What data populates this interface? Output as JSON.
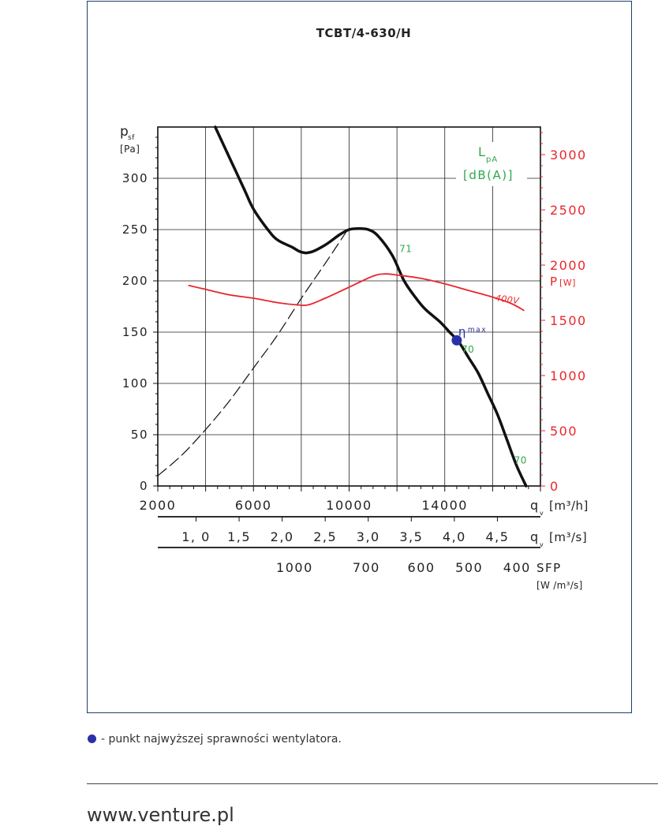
{
  "chart_data": {
    "type": "line",
    "title": "TCBT/4-630/H",
    "ylabel_main": "p",
    "ylabel_sub": "sf",
    "yunit": "[Pa]",
    "y_ticks": [
      "0",
      "50",
      "100",
      "150",
      "200",
      "250",
      "300"
    ],
    "ylim": [
      0,
      350
    ],
    "right_axis": {
      "label_main": "P",
      "label_unit": "[W]",
      "color": "#e8262c",
      "ticks": [
        "0",
        "500",
        "1000",
        "1500",
        "2000",
        "2500",
        "3000"
      ],
      "lim": [
        0,
        3250
      ]
    },
    "lpa_label_main": "L",
    "lpa_label_sub": "pA",
    "lpa_unit": "[dB(A)]",
    "lpa_color": "#2ea84a",
    "x_axis_m3h": {
      "ticks": [
        "2000",
        "6000",
        "10000",
        "14000"
      ],
      "label_main": "q",
      "label_sub": "v",
      "label_unit": "[m³/h]",
      "lim": [
        2000,
        18000
      ]
    },
    "x_axis_m3s": {
      "ticks": [
        "1, 0",
        "1,5",
        "2,0",
        "2,5",
        "3,0",
        "3,5",
        "4,0",
        "4,5"
      ],
      "tick_values": [
        1.0,
        1.5,
        2.0,
        2.5,
        3.0,
        3.5,
        4.0,
        4.5
      ],
      "label_main": "q",
      "label_sub": "v",
      "label_unit": "[m³/s]"
    },
    "x_axis_sfp": {
      "ticks": [
        "1000",
        "700",
        "600",
        "500",
        "400"
      ],
      "tick_positions_m3h": [
        9700,
        12700,
        15000,
        17000,
        19000
      ],
      "label_main": "SFP",
      "label_unit": "[W /m³/s]"
    },
    "series": [
      {
        "role": "fan-curve",
        "color": "#111111",
        "x": [
          4400,
          5000,
          5600,
          6000,
          6600,
          7000,
          7600,
          8000,
          8400,
          9000,
          9600,
          10000,
          10400,
          10800,
          11200,
          11800,
          12300,
          12800,
          13200,
          13800,
          14200,
          14600,
          15000,
          15400,
          15800,
          16200,
          16600,
          17000,
          17400
        ],
        "y": [
          350,
          320,
          290,
          270,
          250,
          240,
          233,
          228,
          228,
          235,
          245,
          250,
          251,
          250,
          244,
          225,
          200,
          183,
          172,
          160,
          150,
          140,
          125,
          110,
          90,
          70,
          45,
          20,
          0
        ]
      },
      {
        "role": "system-curve",
        "color": "#111111",
        "dash": true,
        "x": [
          2000,
          3000,
          4000,
          5000,
          6000,
          7000,
          8000,
          9000,
          10000
        ],
        "y": [
          10,
          30,
          55,
          83,
          115,
          147,
          183,
          217,
          252
        ]
      },
      {
        "role": "power-curve-right-axis",
        "color": "#e8262c",
        "x": [
          3300,
          4000,
          5000,
          6000,
          7000,
          7800,
          8300,
          9000,
          10000,
          11000,
          11500,
          12000,
          13000,
          14000,
          15000,
          16000,
          16800,
          17300
        ],
        "y": [
          1815,
          1780,
          1730,
          1700,
          1660,
          1640,
          1640,
          1700,
          1800,
          1900,
          1920,
          1910,
          1880,
          1830,
          1770,
          1710,
          1650,
          1590
        ]
      }
    ],
    "annotations": [
      {
        "text": "71",
        "x": 12100,
        "y": 228,
        "color": "#2ea84a"
      },
      {
        "text": "70",
        "x": 14700,
        "y": 130,
        "color": "#2ea84a"
      },
      {
        "text": "70",
        "x": 16900,
        "y": 22,
        "color": "#2ea84a"
      },
      {
        "text": "400V",
        "x": 16100,
        "y": 1700,
        "axis": "right",
        "color": "#e8262c"
      }
    ],
    "efficiency_point": {
      "x": 14500,
      "y": 142,
      "color": "#2b2fa8",
      "label": "η",
      "label_sub": "max"
    },
    "grid": true
  },
  "legend_note": "- punkt najwyższej sprawności wentylatora.",
  "footer_url": "www.venture.pl"
}
